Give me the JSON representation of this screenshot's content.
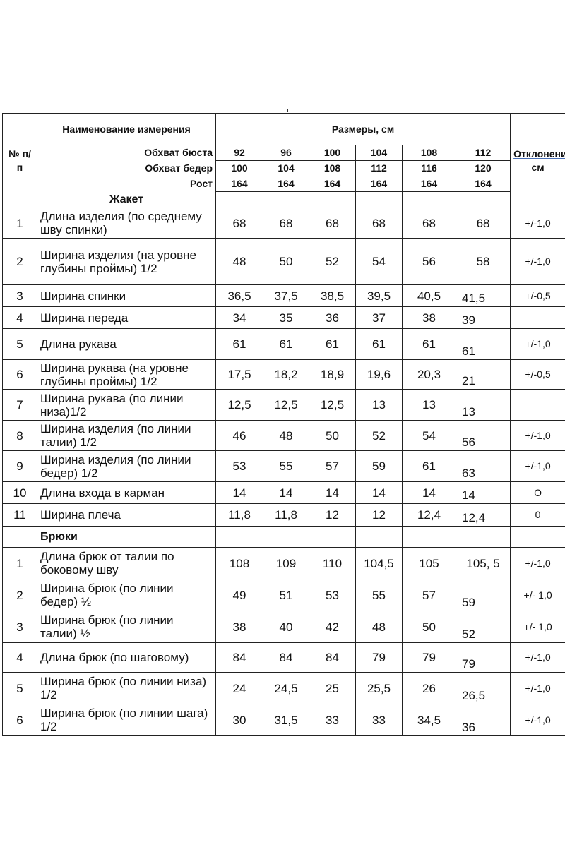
{
  "header": {
    "num_label": "№ п/п",
    "name_label": "Наименование измерения",
    "sizes_label": "Размеры, см",
    "tolerance_label_underlined": "Отклонение,+,-",
    "tolerance_label_unit": "см",
    "param_rows": [
      {
        "label": "Обхват бюста",
        "values": [
          "92",
          "96",
          "100",
          "104",
          "108",
          "112"
        ]
      },
      {
        "label": "Обхват бедер",
        "values": [
          "100",
          "104",
          "108",
          "112",
          "116",
          "120"
        ]
      },
      {
        "label": "Рост",
        "values": [
          "164",
          "164",
          "164",
          "164",
          "164",
          "164"
        ]
      }
    ]
  },
  "sections": [
    {
      "title": "Жакет",
      "rows": [
        {
          "n": "1",
          "name": "Длина изделия (по среднему шву спинки)",
          "values": [
            "68",
            "68",
            "68",
            "68",
            "68",
            "68"
          ],
          "tol": "+/-1,0"
        },
        {
          "n": "2",
          "name": "Ширина изделия (на уровне глубины проймы) 1/2",
          "values": [
            "48",
            "50",
            "52",
            "54",
            "56",
            "58"
          ],
          "tol": "+/-1,0"
        },
        {
          "n": "3",
          "name": "Ширина спинки",
          "values": [
            "36,5",
            "37,5",
            "38,5",
            "39,5",
            "40,5",
            "41,5"
          ],
          "tol": "+/-0,5"
        },
        {
          "n": "4",
          "name": "Ширина переда",
          "values": [
            "34",
            "35",
            "36",
            "37",
            "38",
            "39"
          ],
          "tol": ""
        },
        {
          "n": "5",
          "name": "Длина рукава",
          "values": [
            "61",
            "61",
            "61",
            "61",
            "61",
            "61"
          ],
          "tol": "+/-1,0"
        },
        {
          "n": "6",
          "name": "Ширина рукава (на уровне глубины проймы) 1/2",
          "values": [
            "17,5",
            "18,2",
            "18,9",
            "19,6",
            "20,3",
            "21"
          ],
          "tol": "+/-0,5"
        },
        {
          "n": "7",
          "name": "Ширина рукава (по линии низа)1/2",
          "values": [
            "12,5",
            "12,5",
            "12,5",
            "13",
            "13",
            "13"
          ],
          "tol": ""
        },
        {
          "n": "8",
          "name": "Ширина изделия (по линии талии) 1/2",
          "values": [
            "46",
            "48",
            "50",
            "52",
            "54",
            "56"
          ],
          "tol": "+/-1,0"
        },
        {
          "n": "9",
          "name": "Ширина изделия (по линии бедер) 1/2",
          "values": [
            "53",
            "55",
            "57",
            "59",
            "61",
            "63"
          ],
          "tol": "+/-1,0"
        },
        {
          "n": "10",
          "name": "Длина входа в карман",
          "values": [
            "14",
            "14",
            "14",
            "14",
            "14",
            "14"
          ],
          "tol": "O"
        },
        {
          "n": "11",
          "name": "Ширина плеча",
          "values": [
            "11,8",
            "11,8",
            "12",
            "12",
            "12,4",
            "12,4"
          ],
          "tol": "0"
        }
      ]
    },
    {
      "title": "Брюки",
      "rows": [
        {
          "n": "1",
          "name": "Длина брюк от талии по боковому шву",
          "values": [
            "108",
            "109",
            "110",
            "104,5",
            "105",
            "105, 5"
          ],
          "tol": "+/-1,0"
        },
        {
          "n": "2",
          "name": "Ширина брюк (по линии бедер) ½",
          "values": [
            "49",
            "51",
            "53",
            "55",
            "57",
            "59"
          ],
          "tol": "+/- 1,0"
        },
        {
          "n": "3",
          "name": "Ширина брюк (по линии талии) ½",
          "values": [
            "38",
            "40",
            "42",
            "48",
            "50",
            "52"
          ],
          "tol": "+/- 1,0"
        },
        {
          "n": "4",
          "name": "Длина брюк (по шаговому)",
          "values": [
            "84",
            "84",
            "84",
            "79",
            "79",
            "79"
          ],
          "tol": "+/-1,0"
        },
        {
          "n": "5",
          "name": "Ширина брюк (по линии низа) 1/2",
          "values": [
            "24",
            "24,5",
            "25",
            "25,5",
            "26",
            "26,5"
          ],
          "tol": "+/-1,0"
        },
        {
          "n": "6",
          "name": "Ширина брюк (по линии шага) 1/2",
          "values": [
            "30",
            "31,5",
            "33",
            "33",
            "34,5",
            "36"
          ],
          "tol": "+/-1,0"
        }
      ]
    }
  ]
}
